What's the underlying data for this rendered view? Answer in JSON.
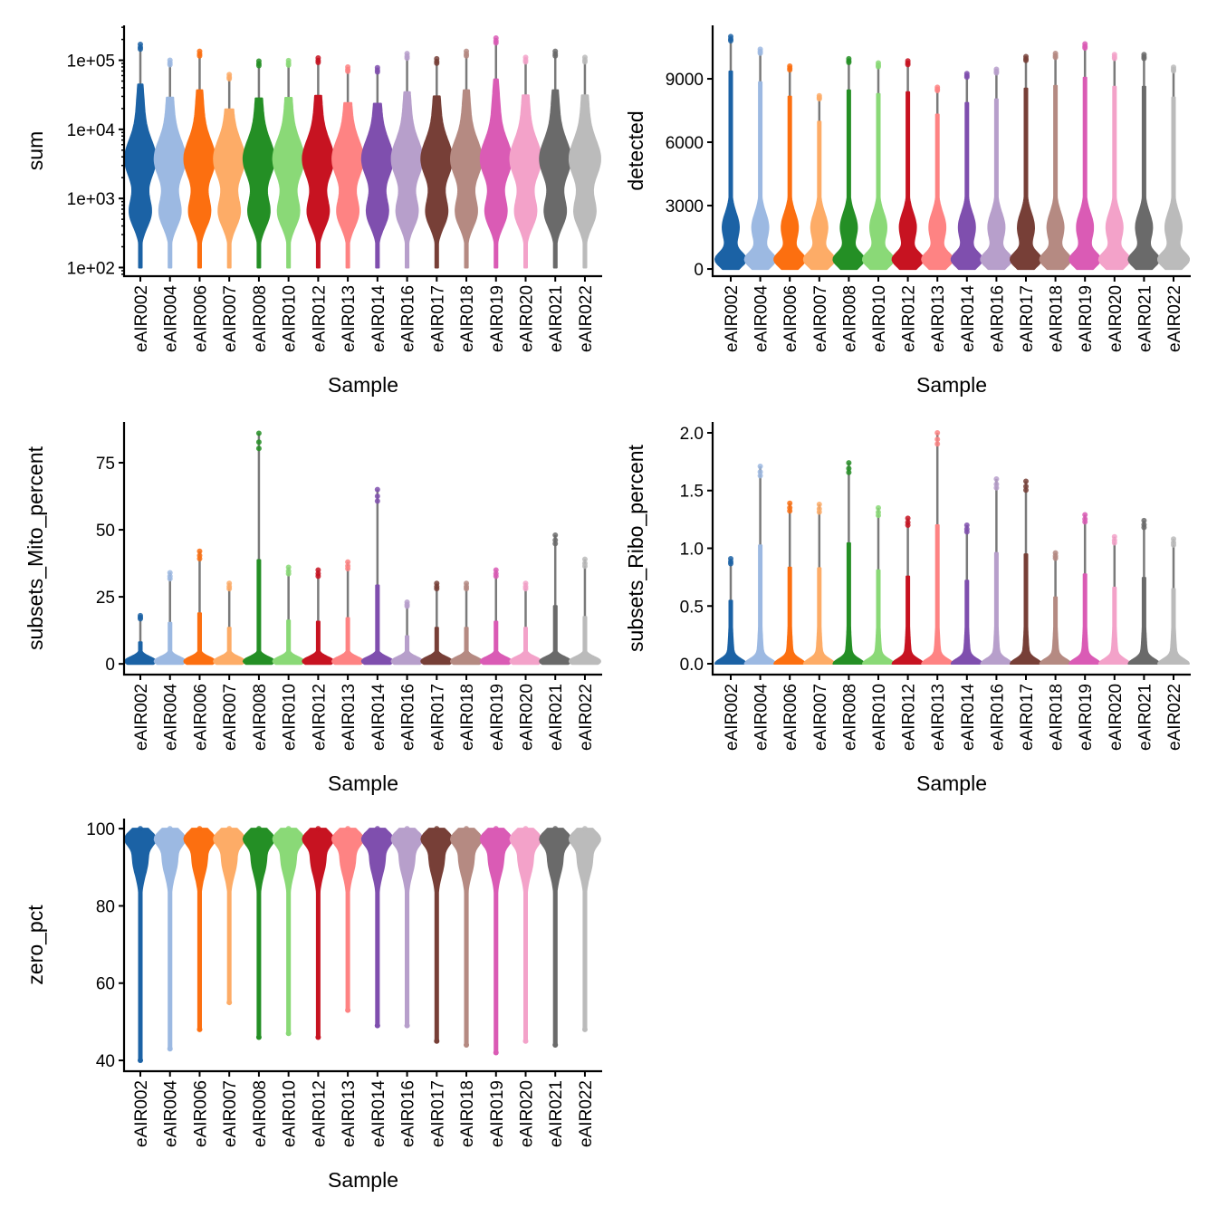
{
  "colors": [
    "#1B62A5",
    "#9CB9E2",
    "#FC6F10",
    "#FDAC67",
    "#248F25",
    "#8AD977",
    "#C71321",
    "#FE8383",
    "#7F4FAE",
    "#B79FCB",
    "#773F37",
    "#B58A82",
    "#DA5BB5",
    "#F3A2C9",
    "#6A6A6A",
    "#BBBBBB"
  ],
  "chart_data": [
    {
      "type": "violin",
      "ylabel": "sum",
      "xlabel": "Sample",
      "yscale": "log10",
      "ylim": [
        75,
        320000
      ],
      "yticks": [
        100,
        1000,
        10000,
        100000
      ],
      "ytick_labels": [
        "1e+02",
        "1e+03",
        "1e+04",
        "1e+05"
      ],
      "categories": [
        "eAIR002",
        "eAIR004",
        "eAIR006",
        "eAIR007",
        "eAIR008",
        "eAIR010",
        "eAIR012",
        "eAIR013",
        "eAIR014",
        "eAIR016",
        "eAIR017",
        "eAIR018",
        "eAIR019",
        "eAIR020",
        "eAIR021",
        "eAIR022"
      ],
      "min": [
        100,
        100,
        100,
        100,
        100,
        100,
        100,
        100,
        100,
        100,
        100,
        100,
        100,
        100,
        100,
        100
      ],
      "max": [
        170000,
        100000,
        135000,
        62000,
        97000,
        99000,
        108000,
        80000,
        78000,
        125000,
        105000,
        135000,
        210000,
        110000,
        135000,
        110000
      ]
    },
    {
      "type": "violin",
      "ylabel": "detected",
      "xlabel": "Sample",
      "yscale": "linear",
      "ylim": [
        -340,
        11530
      ],
      "yticks": [
        0,
        3000,
        6000,
        9000
      ],
      "ytick_labels": [
        "0",
        "3000",
        "6000",
        "9000"
      ],
      "categories": [
        "eAIR002",
        "eAIR004",
        "eAIR006",
        "eAIR007",
        "eAIR008",
        "eAIR010",
        "eAIR012",
        "eAIR013",
        "eAIR014",
        "eAIR016",
        "eAIR017",
        "eAIR018",
        "eAIR019",
        "eAIR020",
        "eAIR021",
        "eAIR022"
      ],
      "min": [
        0,
        0,
        0,
        0,
        0,
        0,
        0,
        0,
        0,
        0,
        0,
        0,
        0,
        0,
        0,
        0
      ],
      "max": [
        11000,
        10400,
        9600,
        8200,
        9950,
        9750,
        9850,
        8600,
        9250,
        9450,
        10050,
        10200,
        10650,
        10150,
        10150,
        9550
      ]
    },
    {
      "type": "violin",
      "ylabel": "subsets_Mito_percent",
      "xlabel": "Sample",
      "yscale": "linear",
      "ylim": [
        -4,
        90.2
      ],
      "yticks": [
        0,
        25,
        50,
        75
      ],
      "ytick_labels": [
        "0",
        "25",
        "50",
        "75"
      ],
      "categories": [
        "eAIR002",
        "eAIR004",
        "eAIR006",
        "eAIR007",
        "eAIR008",
        "eAIR010",
        "eAIR012",
        "eAIR013",
        "eAIR014",
        "eAIR016",
        "eAIR017",
        "eAIR018",
        "eAIR019",
        "eAIR020",
        "eAIR021",
        "eAIR022"
      ],
      "min": [
        0,
        0,
        0,
        0,
        0,
        0,
        0,
        0,
        0,
        0,
        0,
        0,
        0,
        0,
        0,
        0
      ],
      "max": [
        18,
        34,
        42,
        30,
        86,
        36,
        35,
        38,
        65,
        23,
        30,
        30,
        35,
        30,
        48,
        39
      ]
    },
    {
      "type": "violin",
      "ylabel": "subsets_Ribo_percent",
      "xlabel": "Sample",
      "yscale": "linear",
      "ylim": [
        -0.094,
        2.094
      ],
      "yticks": [
        0,
        0.5,
        1,
        1.5,
        2
      ],
      "ytick_labels": [
        "0.0",
        "0.5",
        "1.0",
        "1.5",
        "2.0"
      ],
      "categories": [
        "eAIR002",
        "eAIR004",
        "eAIR006",
        "eAIR007",
        "eAIR008",
        "eAIR010",
        "eAIR012",
        "eAIR013",
        "eAIR014",
        "eAIR016",
        "eAIR017",
        "eAIR018",
        "eAIR019",
        "eAIR020",
        "eAIR021",
        "eAIR022"
      ],
      "min": [
        0,
        0,
        0,
        0,
        0,
        0,
        0,
        0,
        0,
        0,
        0,
        0,
        0,
        0,
        0,
        0
      ],
      "max": [
        0.91,
        1.71,
        1.39,
        1.38,
        1.74,
        1.35,
        1.26,
        2.0,
        1.2,
        1.6,
        1.58,
        0.96,
        1.29,
        1.1,
        1.24,
        1.08
      ]
    },
    {
      "type": "violin",
      "ylabel": "zero_pct",
      "xlabel": "Sample",
      "yscale": "linear",
      "ylim": [
        37.2,
        102.6
      ],
      "yticks": [
        40,
        60,
        80,
        100
      ],
      "ytick_labels": [
        "40",
        "60",
        "80",
        "100"
      ],
      "categories": [
        "eAIR002",
        "eAIR004",
        "eAIR006",
        "eAIR007",
        "eAIR008",
        "eAIR010",
        "eAIR012",
        "eAIR013",
        "eAIR014",
        "eAIR016",
        "eAIR017",
        "eAIR018",
        "eAIR019",
        "eAIR020",
        "eAIR021",
        "eAIR022"
      ],
      "min": [
        40,
        43,
        48,
        55,
        46,
        47,
        46,
        53,
        49,
        49,
        45,
        44,
        42,
        45,
        44,
        48
      ],
      "max": [
        100,
        100,
        100,
        100,
        100,
        100,
        100,
        100,
        100,
        100,
        100,
        100,
        100,
        100,
        100,
        100
      ]
    }
  ]
}
